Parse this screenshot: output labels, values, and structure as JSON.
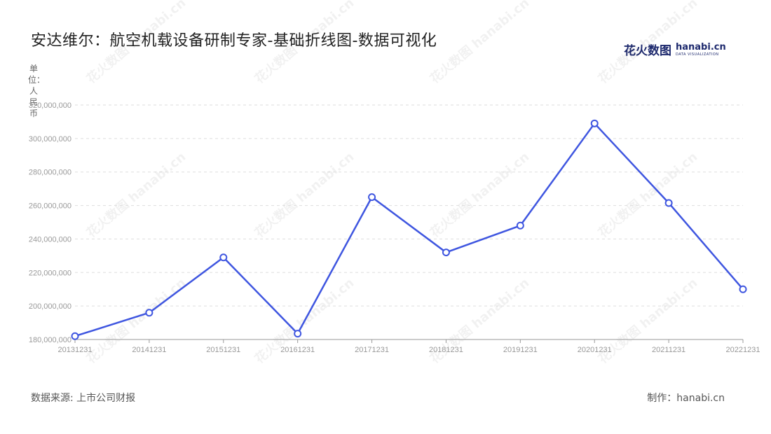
{
  "title": "安达维尔：航空机载设备研制专家-基础折线图-数据可视化",
  "logo": {
    "brand_cn": "花火数图",
    "brand_site": "hanabi.cn",
    "brand_sub": "DATA VISUALIZATION"
  },
  "unit_label": "单位：人民币",
  "footer": {
    "source": "数据来源: 上市公司财报",
    "maker": "制作：hanabi.cn"
  },
  "watermark": "花火数图 hanabi.cn",
  "colors": {
    "line": "#3f56e0",
    "grid": "#dddddd",
    "axis": "#999999",
    "tick_text": "#999999"
  },
  "chart_data": {
    "type": "line",
    "title": "安达维尔：航空机载设备研制专家-基础折线图-数据可视化",
    "ylabel": "单位：人民币",
    "categories": [
      "20131231",
      "20141231",
      "20151231",
      "20161231",
      "20171231",
      "20181231",
      "20191231",
      "20201231",
      "20211231",
      "20221231"
    ],
    "values": [
      182000000,
      196000000,
      229000000,
      183500000,
      265000000,
      232000000,
      248000000,
      309000000,
      261500000,
      210000000
    ],
    "ylim": [
      180000000,
      320000000
    ],
    "yticks": [
      "180,000,000",
      "200,000,000",
      "220,000,000",
      "240,000,000",
      "260,000,000",
      "280,000,000",
      "300,000,000",
      "320,000,000"
    ],
    "grid": true,
    "legend": "none"
  }
}
